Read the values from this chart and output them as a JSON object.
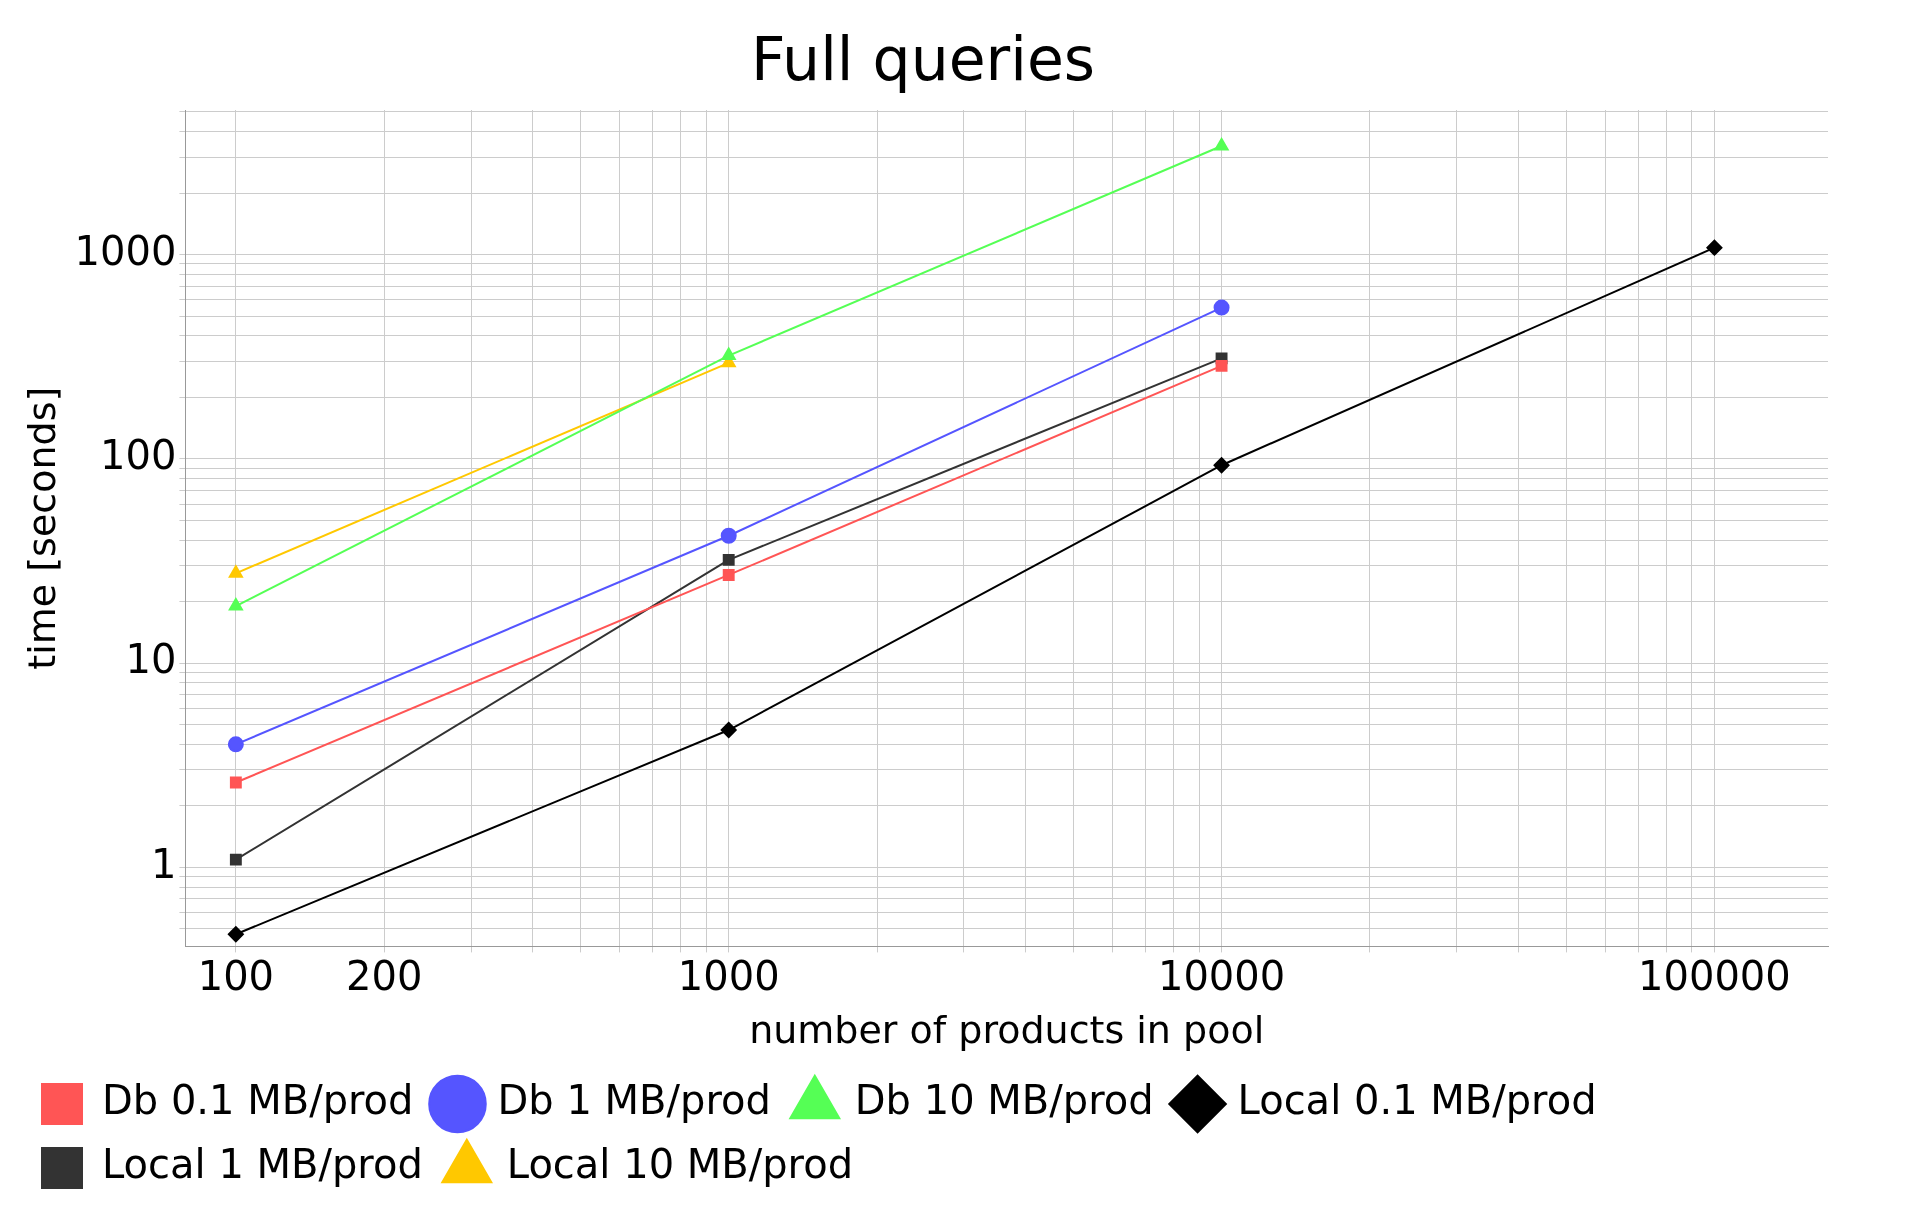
{
  "chart_data": {
    "type": "line",
    "title": "Full queries",
    "xlabel": "number of products in pool",
    "ylabel": "time [seconds]",
    "log": "xy",
    "grid": true,
    "legend": "bottom",
    "xlim": [
      79,
      170000
    ],
    "ylim": [
      0.41,
      5100
    ],
    "xticks": [
      100,
      200,
      {
        "value": 300,
        "label": null
      },
      {
        "value": 400,
        "label": null
      },
      {
        "value": 500,
        "label": null
      },
      {
        "value": 600,
        "label": null
      },
      {
        "value": 700,
        "label": null
      },
      {
        "value": 800,
        "label": null
      },
      {
        "value": 900,
        "label": null
      },
      1000,
      {
        "value": 2000,
        "label": null
      },
      {
        "value": 3000,
        "label": null
      },
      {
        "value": 4000,
        "label": null
      },
      {
        "value": 5000,
        "label": null
      },
      {
        "value": 6000,
        "label": null
      },
      {
        "value": 7000,
        "label": null
      },
      {
        "value": 8000,
        "label": null
      },
      {
        "value": 9000,
        "label": null
      },
      10000,
      {
        "value": 20000,
        "label": null
      },
      {
        "value": 30000,
        "label": null
      },
      {
        "value": 40000,
        "label": null
      },
      {
        "value": 50000,
        "label": null
      },
      {
        "value": 60000,
        "label": null
      },
      {
        "value": 70000,
        "label": null
      },
      {
        "value": 80000,
        "label": null
      },
      {
        "value": 90000,
        "label": null
      },
      100000
    ],
    "yticks": [
      {
        "value": 0.5,
        "label": null
      },
      {
        "value": 0.6,
        "label": null
      },
      {
        "value": 0.7,
        "label": null
      },
      {
        "value": 0.8,
        "label": null
      },
      {
        "value": 0.9,
        "label": null
      },
      1,
      {
        "value": 2,
        "label": null
      },
      {
        "value": 3,
        "label": null
      },
      {
        "value": 4,
        "label": null
      },
      {
        "value": 5,
        "label": null
      },
      {
        "value": 6,
        "label": null
      },
      {
        "value": 7,
        "label": null
      },
      {
        "value": 8,
        "label": null
      },
      {
        "value": 9,
        "label": null
      },
      10,
      {
        "value": 20,
        "label": null
      },
      {
        "value": 30,
        "label": null
      },
      {
        "value": 40,
        "label": null
      },
      {
        "value": 50,
        "label": null
      },
      {
        "value": 60,
        "label": null
      },
      {
        "value": 70,
        "label": null
      },
      {
        "value": 80,
        "label": null
      },
      {
        "value": 90,
        "label": null
      },
      100,
      {
        "value": 200,
        "label": null
      },
      {
        "value": 300,
        "label": null
      },
      {
        "value": 400,
        "label": null
      },
      {
        "value": 500,
        "label": null
      },
      {
        "value": 600,
        "label": null
      },
      {
        "value": 700,
        "label": null
      },
      {
        "value": 800,
        "label": null
      },
      {
        "value": 900,
        "label": null
      },
      1000,
      {
        "value": 2000,
        "label": null
      },
      {
        "value": 3000,
        "label": null
      },
      {
        "value": 4000,
        "label": null
      },
      {
        "value": 5000,
        "label": null
      }
    ],
    "series": [
      {
        "name": "Db 0.1 MB/prod",
        "color": "#ff5555",
        "marker": "square",
        "x": [
          100,
          1000,
          10000
        ],
        "values": [
          2.6,
          27,
          285
        ]
      },
      {
        "name": "Db 1 MB/prod",
        "color": "#5555ff",
        "marker": "circle",
        "x": [
          100,
          1000,
          10000
        ],
        "values": [
          4,
          42,
          550
        ]
      },
      {
        "name": "Db 10 MB/prod",
        "color": "#55ff55",
        "marker": "triangle",
        "x": [
          100,
          1000,
          10000
        ],
        "values": [
          19,
          320,
          3400
        ]
      },
      {
        "name": "Local 0.1 MB/prod",
        "color": "#000000",
        "marker": "diamond",
        "x": [
          100,
          1000,
          10000,
          100000
        ],
        "values": [
          0.47,
          4.7,
          93,
          1080
        ]
      },
      {
        "name": "Local 1 MB/prod",
        "color": "#333333",
        "marker": "square",
        "x": [
          100,
          1000,
          10000
        ],
        "values": [
          1.09,
          32,
          310
        ]
      },
      {
        "name": "Local 10 MB/prod",
        "color": "#ffc800",
        "marker": "triangle",
        "x": [
          100,
          1000
        ],
        "values": [
          27.5,
          295
        ]
      }
    ]
  }
}
